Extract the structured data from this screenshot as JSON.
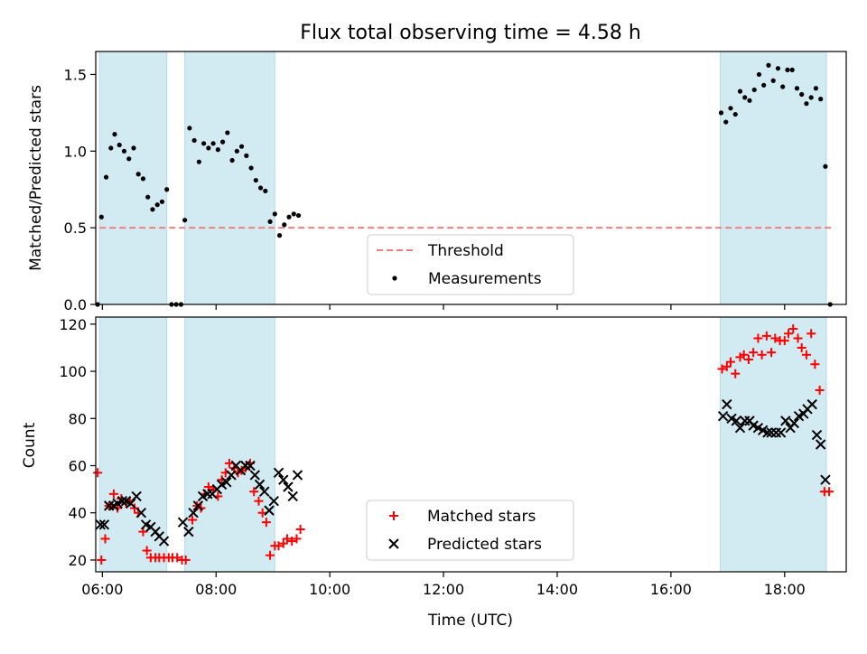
{
  "chart_data": [
    {
      "type": "scatter",
      "title": "Flux total observing time = 4.58 h",
      "ylabel": "Matched/Predicted stars",
      "xlim": [
        "05:53",
        "19:05"
      ],
      "ylim": [
        0,
        1.65
      ],
      "yticks": [
        "0.0",
        "0.5",
        "1.0",
        "1.5"
      ],
      "xticks": [
        "06:00",
        "08:00",
        "10:00",
        "12:00",
        "14:00",
        "16:00",
        "18:00"
      ],
      "shaded_intervals": [
        [
          "05:57",
          "07:08"
        ],
        [
          "07:27",
          "09:02"
        ],
        [
          "16:52",
          "18:44"
        ]
      ],
      "shade_color": "#add8e6",
      "legend_position": "lower-center",
      "threshold": {
        "name": "Threshold",
        "value": 0.5,
        "x_range": [
          "05:57",
          "18:53"
        ],
        "color": "#f08080"
      },
      "series": [
        {
          "name": "Measurements",
          "color": "#000000",
          "points": [
            [
              "05:55",
              0.0
            ],
            [
              "05:59",
              0.57
            ],
            [
              "06:04",
              0.83
            ],
            [
              "06:09",
              1.02
            ],
            [
              "06:13",
              1.11
            ],
            [
              "06:18",
              1.04
            ],
            [
              "06:23",
              1.0
            ],
            [
              "06:28",
              0.95
            ],
            [
              "06:33",
              1.02
            ],
            [
              "06:38",
              0.85
            ],
            [
              "06:43",
              0.82
            ],
            [
              "06:48",
              0.7
            ],
            [
              "06:53",
              0.62
            ],
            [
              "06:58",
              0.65
            ],
            [
              "07:03",
              0.67
            ],
            [
              "07:08",
              0.75
            ],
            [
              "07:13",
              0.0
            ],
            [
              "07:18",
              0.0
            ],
            [
              "07:23",
              0.0
            ],
            [
              "07:27",
              0.55
            ],
            [
              "07:32",
              1.15
            ],
            [
              "07:37",
              1.07
            ],
            [
              "07:42",
              0.93
            ],
            [
              "07:47",
              1.05
            ],
            [
              "07:52",
              1.02
            ],
            [
              "07:57",
              1.05
            ],
            [
              "08:02",
              1.01
            ],
            [
              "08:07",
              1.06
            ],
            [
              "08:12",
              1.12
            ],
            [
              "08:17",
              0.94
            ],
            [
              "08:22",
              1.0
            ],
            [
              "08:27",
              1.03
            ],
            [
              "08:32",
              0.97
            ],
            [
              "08:37",
              0.89
            ],
            [
              "08:42",
              0.81
            ],
            [
              "08:47",
              0.76
            ],
            [
              "08:52",
              0.74
            ],
            [
              "08:57",
              0.54
            ],
            [
              "09:02",
              0.59
            ],
            [
              "09:07",
              0.45
            ],
            [
              "09:12",
              0.52
            ],
            [
              "09:17",
              0.57
            ],
            [
              "09:22",
              0.59
            ],
            [
              "09:27",
              0.58
            ],
            [
              "16:53",
              1.25
            ],
            [
              "16:58",
              1.19
            ],
            [
              "17:03",
              1.28
            ],
            [
              "17:08",
              1.24
            ],
            [
              "17:13",
              1.39
            ],
            [
              "17:18",
              1.35
            ],
            [
              "17:23",
              1.33
            ],
            [
              "17:28",
              1.4
            ],
            [
              "17:33",
              1.5
            ],
            [
              "17:38",
              1.43
            ],
            [
              "17:43",
              1.56
            ],
            [
              "17:48",
              1.46
            ],
            [
              "17:53",
              1.54
            ],
            [
              "17:58",
              1.42
            ],
            [
              "18:03",
              1.53
            ],
            [
              "18:08",
              1.53
            ],
            [
              "18:13",
              1.41
            ],
            [
              "18:18",
              1.37
            ],
            [
              "18:23",
              1.31
            ],
            [
              "18:28",
              1.35
            ],
            [
              "18:33",
              1.41
            ],
            [
              "18:38",
              1.34
            ],
            [
              "18:43",
              0.9
            ],
            [
              "18:48",
              0.0
            ]
          ]
        }
      ]
    },
    {
      "type": "scatter",
      "xlabel": "Time (UTC)",
      "ylabel": "Count",
      "xlim": [
        "05:53",
        "19:05"
      ],
      "ylim": [
        15,
        123
      ],
      "yticks": [
        "20",
        "40",
        "60",
        "80",
        "100",
        "120"
      ],
      "xticks": [
        "06:00",
        "08:00",
        "10:00",
        "12:00",
        "14:00",
        "16:00",
        "18:00"
      ],
      "shaded_intervals": [
        [
          "05:57",
          "07:08"
        ],
        [
          "07:27",
          "09:02"
        ],
        [
          "16:52",
          "18:44"
        ]
      ],
      "shade_color": "#add8e6",
      "legend_position": "lower-center",
      "series": [
        {
          "name": "Matched stars",
          "marker": "+",
          "color": "#ff0000",
          "points": [
            [
              "05:55",
              57
            ],
            [
              "05:59",
              20
            ],
            [
              "06:03",
              29
            ],
            [
              "06:07",
              43
            ],
            [
              "06:12",
              48
            ],
            [
              "06:16",
              42
            ],
            [
              "06:20",
              46
            ],
            [
              "06:25",
              44
            ],
            [
              "06:29",
              45
            ],
            [
              "06:34",
              42
            ],
            [
              "06:38",
              40
            ],
            [
              "06:43",
              32
            ],
            [
              "06:47",
              24
            ],
            [
              "06:51",
              21
            ],
            [
              "06:56",
              21
            ],
            [
              "07:00",
              21
            ],
            [
              "07:05",
              21
            ],
            [
              "07:10",
              21
            ],
            [
              "07:14",
              21
            ],
            [
              "07:19",
              21
            ],
            [
              "07:24",
              20
            ],
            [
              "07:28",
              20
            ],
            [
              "07:35",
              37
            ],
            [
              "07:40",
              43
            ],
            [
              "07:44",
              42
            ],
            [
              "07:48",
              48
            ],
            [
              "07:52",
              51
            ],
            [
              "07:57",
              50
            ],
            [
              "08:02",
              47
            ],
            [
              "08:06",
              54
            ],
            [
              "08:10",
              57
            ],
            [
              "08:14",
              61
            ],
            [
              "08:19",
              59
            ],
            [
              "08:23",
              57
            ],
            [
              "08:27",
              58
            ],
            [
              "08:31",
              59
            ],
            [
              "08:36",
              61
            ],
            [
              "08:40",
              49
            ],
            [
              "08:45",
              45
            ],
            [
              "08:49",
              40
            ],
            [
              "08:53",
              36
            ],
            [
              "08:57",
              22
            ],
            [
              "09:02",
              26
            ],
            [
              "09:06",
              26
            ],
            [
              "09:11",
              27
            ],
            [
              "09:15",
              29
            ],
            [
              "09:20",
              28
            ],
            [
              "09:25",
              29
            ],
            [
              "09:29",
              33
            ],
            [
              "16:54",
              101
            ],
            [
              "16:59",
              102
            ],
            [
              "17:03",
              104
            ],
            [
              "17:08",
              99
            ],
            [
              "17:13",
              106
            ],
            [
              "17:17",
              107
            ],
            [
              "17:22",
              105
            ],
            [
              "17:27",
              108
            ],
            [
              "17:32",
              114
            ],
            [
              "17:36",
              107
            ],
            [
              "17:41",
              115
            ],
            [
              "17:46",
              108
            ],
            [
              "17:50",
              114
            ],
            [
              "17:55",
              113
            ],
            [
              "18:00",
              113
            ],
            [
              "18:04",
              116
            ],
            [
              "18:09",
              118
            ],
            [
              "18:14",
              114
            ],
            [
              "18:18",
              110
            ],
            [
              "18:23",
              107
            ],
            [
              "18:28",
              116
            ],
            [
              "18:32",
              103
            ],
            [
              "18:37",
              92
            ],
            [
              "18:42",
              49
            ],
            [
              "18:47",
              49
            ]
          ]
        },
        {
          "name": "Predicted stars",
          "marker": "x",
          "color": "#000000",
          "points": [
            [
              "05:58",
              35
            ],
            [
              "06:02",
              35
            ],
            [
              "06:07",
              43
            ],
            [
              "06:12",
              43
            ],
            [
              "06:16",
              44
            ],
            [
              "06:21",
              45
            ],
            [
              "06:25",
              45
            ],
            [
              "06:30",
              44
            ],
            [
              "06:36",
              47
            ],
            [
              "06:41",
              40
            ],
            [
              "06:46",
              35
            ],
            [
              "06:51",
              34
            ],
            [
              "06:56",
              32
            ],
            [
              "07:00",
              30
            ],
            [
              "07:05",
              28
            ],
            [
              "07:25",
              36
            ],
            [
              "07:31",
              32
            ],
            [
              "07:36",
              40
            ],
            [
              "07:41",
              43
            ],
            [
              "07:46",
              47
            ],
            [
              "07:51",
              48
            ],
            [
              "07:56",
              48
            ],
            [
              "08:01",
              50
            ],
            [
              "08:06",
              52
            ],
            [
              "08:11",
              53
            ],
            [
              "08:16",
              56
            ],
            [
              "08:21",
              60
            ],
            [
              "08:26",
              58
            ],
            [
              "08:31",
              60
            ],
            [
              "08:36",
              60
            ],
            [
              "08:41",
              56
            ],
            [
              "08:46",
              52
            ],
            [
              "08:51",
              49
            ],
            [
              "08:56",
              41
            ],
            [
              "09:01",
              45
            ],
            [
              "09:06",
              57
            ],
            [
              "09:11",
              54
            ],
            [
              "09:16",
              51
            ],
            [
              "09:21",
              47
            ],
            [
              "09:26",
              56
            ],
            [
              "16:55",
              81
            ],
            [
              "16:59",
              86
            ],
            [
              "17:04",
              80
            ],
            [
              "17:09",
              79
            ],
            [
              "17:13",
              76
            ],
            [
              "17:18",
              79
            ],
            [
              "17:23",
              79
            ],
            [
              "17:27",
              77
            ],
            [
              "17:32",
              76
            ],
            [
              "17:37",
              75
            ],
            [
              "17:42",
              74
            ],
            [
              "17:46",
              74
            ],
            [
              "17:51",
              74
            ],
            [
              "17:56",
              74
            ],
            [
              "18:01",
              79
            ],
            [
              "18:06",
              76
            ],
            [
              "18:10",
              78
            ],
            [
              "18:15",
              81
            ],
            [
              "18:20",
              82
            ],
            [
              "18:24",
              84
            ],
            [
              "18:29",
              86
            ],
            [
              "18:34",
              73
            ],
            [
              "18:38",
              69
            ],
            [
              "18:43",
              54
            ]
          ]
        }
      ]
    }
  ]
}
